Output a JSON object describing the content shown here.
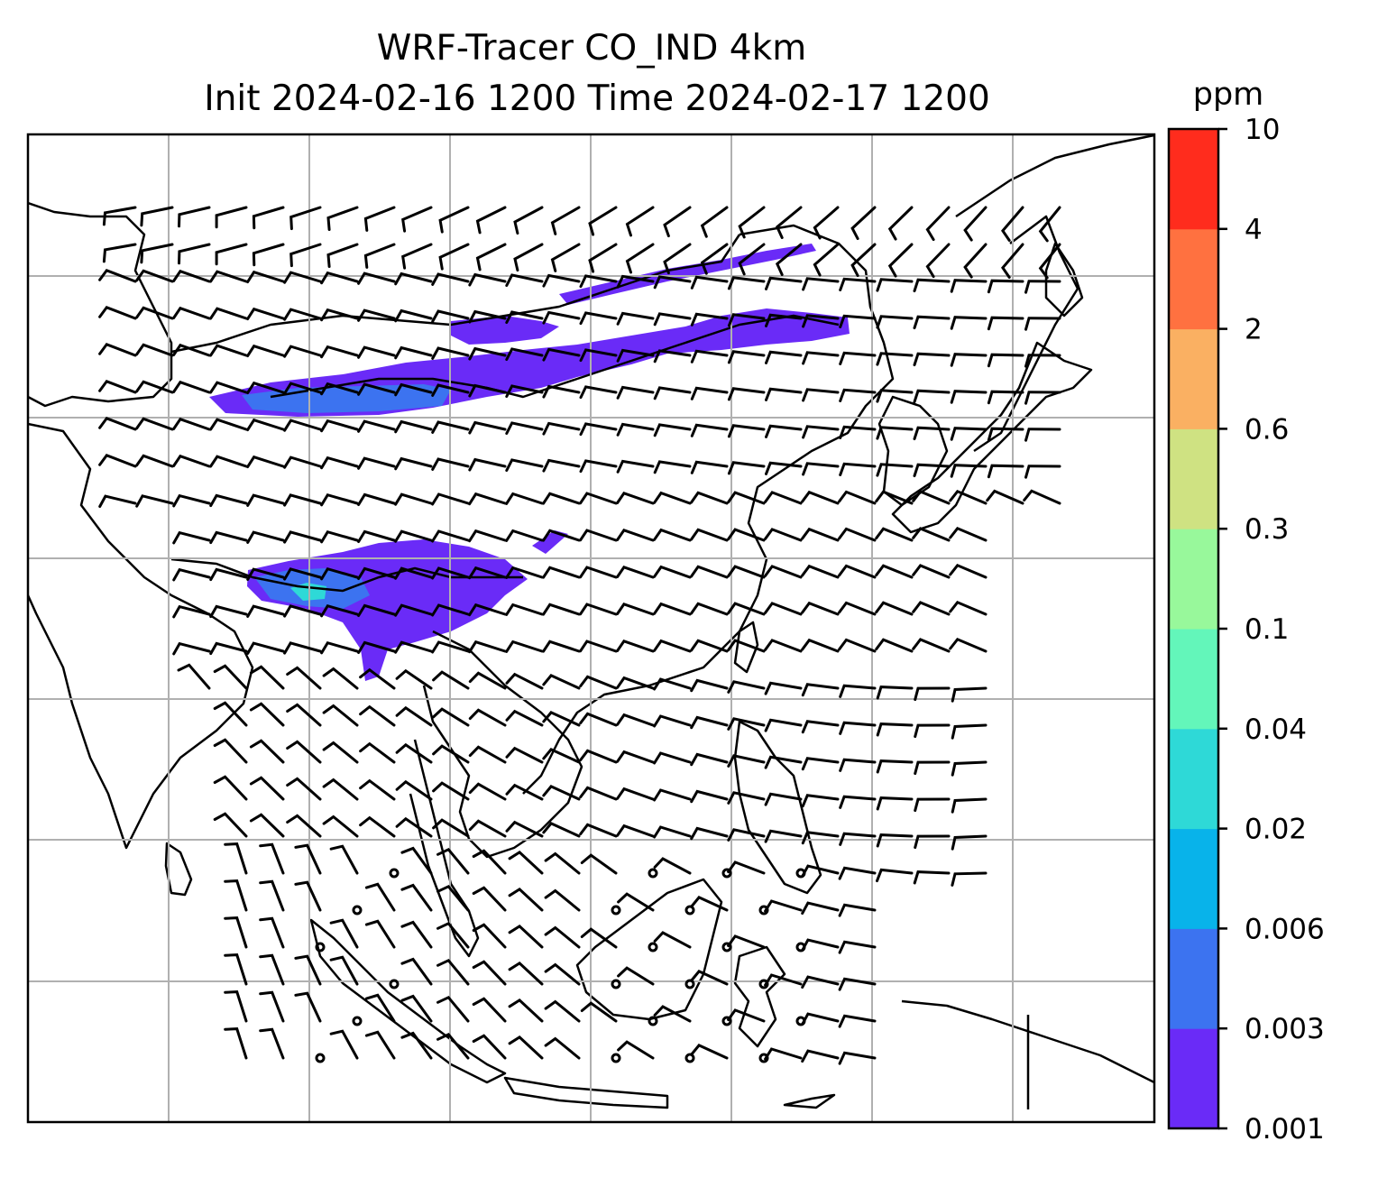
{
  "title": {
    "line1": "WRF-Tracer CO_IND 4km",
    "line2": "Init 2024-02-16 1200 Time 2024-02-17 1200"
  },
  "chart_data": {
    "type": "heatmap",
    "title": "WRF-Tracer CO_IND 4km",
    "subtitle": "Init 2024-02-16 1200 Time 2024-02-17 1200",
    "grid": true,
    "colorbar": {
      "label": "ppm",
      "placement": "right",
      "levels": [
        "0.001",
        "0.003",
        "0.006",
        "0.02",
        "0.04",
        "0.1",
        "0.3",
        "0.6",
        "2",
        "4",
        "10"
      ],
      "colors": [
        "#6a2bf7",
        "#3c73f0",
        "#08b3ea",
        "#2ed9d7",
        "#63f6ba",
        "#98f89b",
        "#cfe282",
        "#fab062",
        "#ff7140",
        "#ff2c1d"
      ]
    }
  },
  "overlay": {
    "coastline_color": "#000000",
    "gridline_color": "#b0b0b0",
    "wind_barbs": true
  }
}
